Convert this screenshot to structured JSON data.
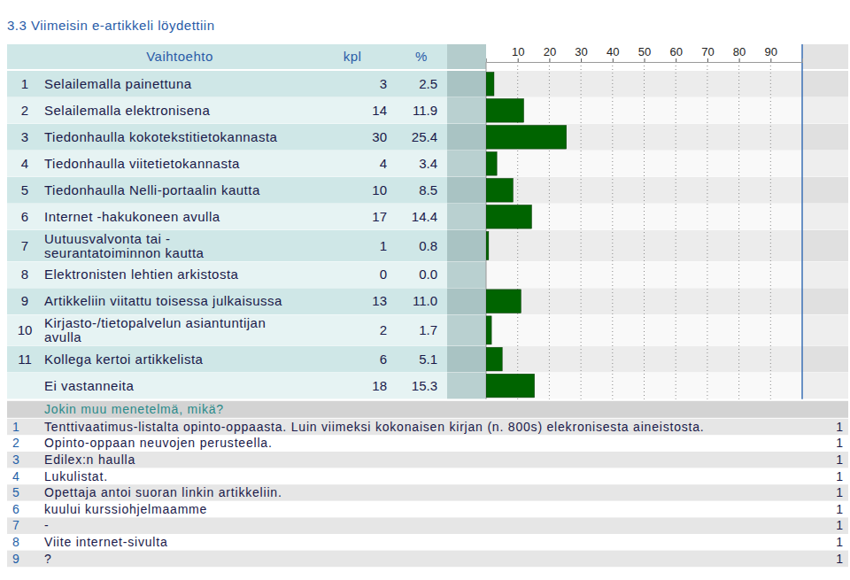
{
  "chart_data": {
    "type": "bar",
    "orientation": "horizontal",
    "title": "3.3 Viimeisin e-artikkeli löydettiin",
    "column_headers": [
      "Vaihtoehto",
      "kpl",
      "%"
    ],
    "row_numbers": [
      1,
      2,
      3,
      4,
      5,
      6,
      7,
      8,
      9,
      10,
      11,
      null
    ],
    "categories": [
      "Selailemalla painettuna",
      "Selailemalla elektronisena",
      "Tiedonhaulla kokotekstitietokannasta",
      "Tiedonhaulla viitetietokannasta",
      "Tiedonhaulla Nelli-portaalin kautta",
      "Internet -hakukoneen avulla",
      "Uutuusvalvonta tai - seurantatoiminnon kautta",
      "Elektronisten lehtien arkistosta",
      "Artikkeliin viitattu toisessa julkaisussa",
      "Kirjasto-/tietopalvelun asiantuntijan avulla",
      "Kollega kertoi artikkelista",
      "Ei vastanneita"
    ],
    "counts": [
      3,
      14,
      30,
      4,
      10,
      17,
      1,
      0,
      13,
      2,
      6,
      18
    ],
    "values": [
      2.5,
      11.9,
      25.4,
      3.4,
      8.5,
      14.4,
      0.8,
      0.0,
      11.0,
      1.7,
      5.1,
      15.3
    ],
    "value_labels": [
      "2.5",
      "11.9",
      "25.4",
      "3.4",
      "8.5",
      "14.4",
      "0.8",
      "0.0",
      "11.0",
      "1.7",
      "5.1",
      "15.3"
    ],
    "color": "#006400",
    "xlim": [
      0,
      100
    ],
    "xticks": [
      10,
      20,
      30,
      40,
      50,
      60,
      70,
      80,
      90
    ],
    "grid": true,
    "data_labels": true
  },
  "other_answers": {
    "title": "Jokin muu menetelmä, mikä?",
    "rows": [
      {
        "number": 1,
        "text": "Tenttivaatimus-listalta opinto-oppaasta. Luin viimeksi kokonaisen kirjan (n. 800s) elekronisesta aineistosta.",
        "count": 1
      },
      {
        "number": 2,
        "text": "Opinto-oppaan neuvojen perusteella.",
        "count": 1
      },
      {
        "number": 3,
        "text": "Edilex:n haulla",
        "count": 1
      },
      {
        "number": 4,
        "text": "Lukulistat.",
        "count": 1
      },
      {
        "number": 5,
        "text": "Opettaja antoi suoran linkin artikkeliin.",
        "count": 1
      },
      {
        "number": 6,
        "text": "kuului kurssiohjelmaamme",
        "count": 1
      },
      {
        "number": 7,
        "text": "-",
        "count": 1
      },
      {
        "number": 8,
        "text": "Viite internet-sivulta",
        "count": 1
      },
      {
        "number": 9,
        "text": "?",
        "count": 1
      }
    ]
  }
}
